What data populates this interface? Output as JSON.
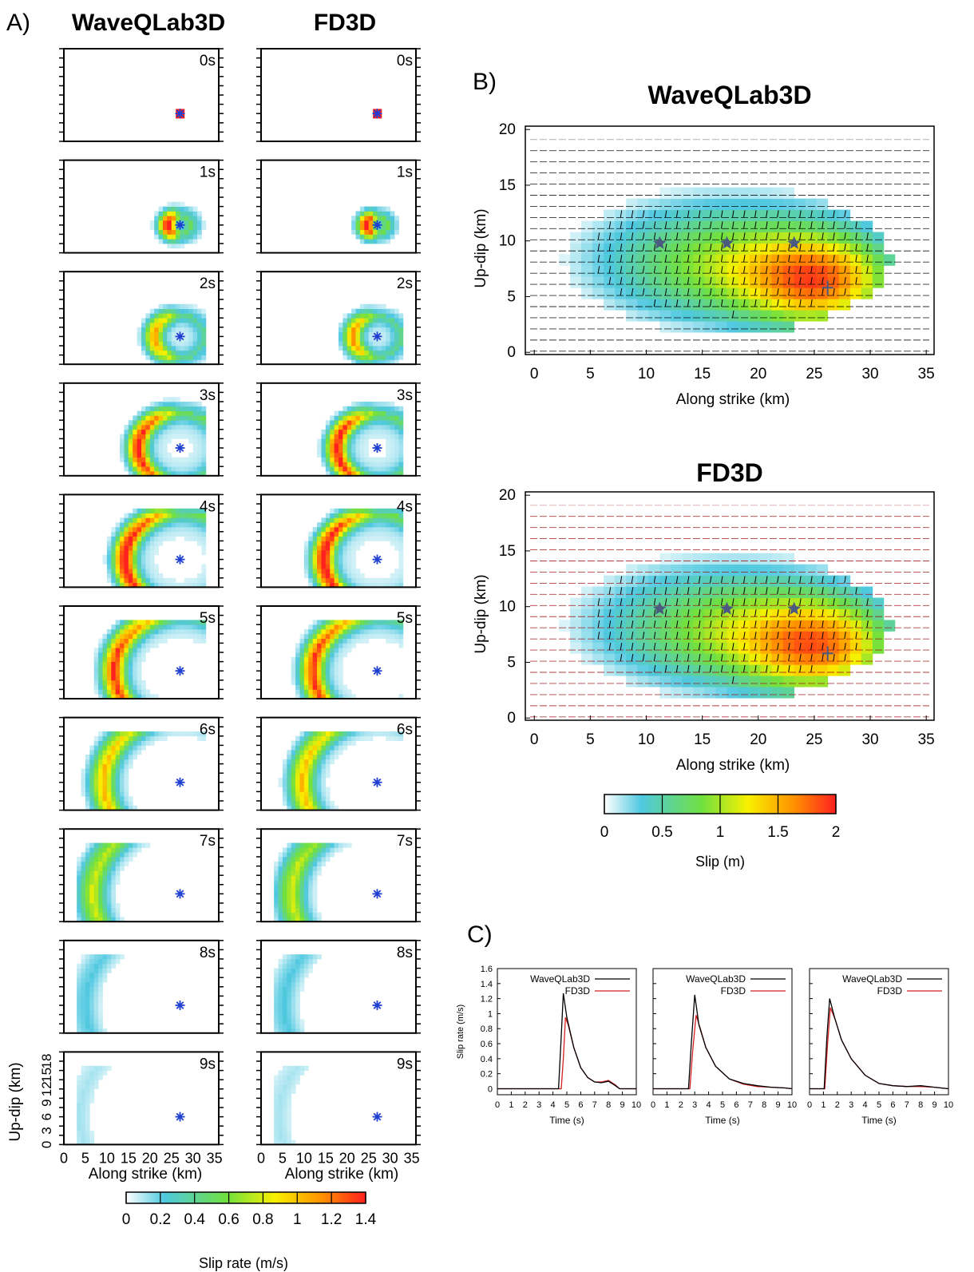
{
  "panels": {
    "a": "A)",
    "b": "B)",
    "c": "C)"
  },
  "panel_a": {
    "columns": [
      "WaveQLab3D",
      "FD3D"
    ],
    "times": [
      "0s",
      "1s",
      "2s",
      "3s",
      "4s",
      "5s",
      "6s",
      "7s",
      "8s",
      "9s"
    ],
    "xlabel": "Along strike (km)",
    "ylabel": "Up-dip (km)",
    "xticks": [
      "0",
      "5",
      "10",
      "15",
      "20",
      "25",
      "30",
      "35"
    ],
    "yticks": [
      "0",
      "3",
      "6",
      "9",
      "12",
      "15",
      "18"
    ],
    "colorbar_label": "Slip rate (m/s)",
    "colorbar_ticks": [
      "0",
      "0.2",
      "0.4",
      "0.6",
      "0.8",
      "1",
      "1.2",
      "1.4"
    ]
  },
  "panel_b": {
    "titles": [
      "WaveQLab3D",
      "FD3D"
    ],
    "xlabel": "Along strike (km)",
    "ylabel": "Up-dip (km)",
    "xticks": [
      "0",
      "5",
      "10",
      "15",
      "20",
      "25",
      "30",
      "35"
    ],
    "yticks": [
      "0",
      "5",
      "10",
      "15",
      "20"
    ],
    "colorbar_label": "Slip (m)",
    "colorbar_ticks": [
      "0",
      "0.5",
      "1",
      "1.5",
      "2"
    ]
  },
  "panel_c": {
    "xlabel": "Time (s)",
    "ylabel": "Slip rate (m/s)",
    "xticks": [
      "0",
      "1",
      "2",
      "3",
      "4",
      "5",
      "6",
      "7",
      "8",
      "9",
      "10"
    ],
    "yticks": [
      "0",
      "0.2",
      "0.4",
      "0.6",
      "0.8",
      "1",
      "1.2",
      "1.4",
      "1.6"
    ],
    "legend": [
      "WaveQLab3D",
      "FD3D"
    ]
  },
  "colors": {
    "wave": "#000000",
    "fd3d": "#d42020",
    "hypocenter": "#1f3fd0",
    "star": "#4a5a80",
    "colormap": [
      "#ffffff",
      "#4fc8e0",
      "#70e040",
      "#f8f000",
      "#ff9000",
      "#ff2020"
    ]
  },
  "chart_data": [
    {
      "type": "heatmap",
      "panel": "A",
      "description_series": "slip-rate snapshots",
      "xlim": [
        0,
        36
      ],
      "ylim": [
        0,
        20
      ],
      "hypocenter": [
        27,
        6
      ],
      "slip_rate_range": [
        0,
        1.4
      ],
      "snapshots": [
        {
          "t": 0,
          "front_radius_km": 0.8,
          "peak": 1.4
        },
        {
          "t": 1,
          "front_radius_km": 2.5,
          "peak": 1.35
        },
        {
          "t": 2,
          "front_radius_km": 5,
          "peak": 1.0
        },
        {
          "t": 3,
          "front_radius_km": 8,
          "peak": 1.3
        },
        {
          "t": 4,
          "front_radius_km": 10.5,
          "peak": 1.35
        },
        {
          "t": 5,
          "front_radius_km": 12.5,
          "peak": 1.2
        },
        {
          "t": 6,
          "front_radius_km": 14.5,
          "peak": 0.9
        },
        {
          "t": 7,
          "front_radius_km": 16.5,
          "peak": 0.7
        },
        {
          "t": 8,
          "front_radius_km": 18,
          "peak": 0.2
        },
        {
          "t": 9,
          "front_radius_km": 19,
          "peak": 0.1
        }
      ]
    },
    {
      "type": "heatmap",
      "panel": "B",
      "xlim": [
        0,
        36
      ],
      "ylim": [
        0,
        20
      ],
      "slip_range": [
        0,
        2
      ],
      "stations": [
        [
          12,
          10
        ],
        [
          18,
          10
        ],
        [
          24,
          10
        ]
      ],
      "hypocenter": [
        27,
        6
      ],
      "peak_slip": 1.9
    },
    {
      "type": "line",
      "panel": "C",
      "xlim": [
        0,
        10
      ],
      "ylim": [
        0,
        1.6
      ],
      "plots": [
        {
          "series": [
            {
              "name": "WaveQLab3D",
              "x": [
                0,
                4.4,
                4.6,
                4.75,
                5.0,
                5.5,
                6.0,
                6.5,
                7.0,
                7.5,
                8.0,
                8.5,
                8.8,
                10
              ],
              "y": [
                0,
                0,
                0.7,
                1.27,
                0.95,
                0.55,
                0.28,
                0.15,
                0.09,
                0.08,
                0.1,
                0.04,
                0,
                0
              ]
            },
            {
              "name": "FD3D",
              "x": [
                0,
                4.6,
                4.75,
                4.9,
                5.1,
                5.5,
                6.0,
                6.5,
                7.0,
                7.5,
                8.0,
                8.5,
                8.8,
                10
              ],
              "y": [
                0,
                0,
                0.4,
                0.95,
                0.85,
                0.55,
                0.28,
                0.15,
                0.09,
                0.09,
                0.11,
                0.05,
                0,
                0
              ]
            }
          ]
        },
        {
          "series": [
            {
              "name": "WaveQLab3D",
              "x": [
                0,
                2.55,
                2.75,
                3.0,
                3.3,
                3.8,
                4.5,
                5.5,
                6.5,
                7.5,
                8.5,
                9.5,
                10
              ],
              "y": [
                0,
                0,
                0.6,
                1.25,
                0.85,
                0.55,
                0.3,
                0.13,
                0.07,
                0.04,
                0.02,
                0.01,
                0
              ]
            },
            {
              "name": "FD3D",
              "x": [
                0,
                2.65,
                2.85,
                3.1,
                3.4,
                3.8,
                4.5,
                5.5,
                6.5,
                7.5,
                8.5,
                9.5,
                10
              ],
              "y": [
                0,
                0,
                0.5,
                0.98,
                0.8,
                0.55,
                0.3,
                0.13,
                0.06,
                0.03,
                0.02,
                0.01,
                0
              ]
            }
          ]
        },
        {
          "series": [
            {
              "name": "WaveQLab3D",
              "x": [
                0,
                1.05,
                1.25,
                1.45,
                1.8,
                2.3,
                3.0,
                4.0,
                5.0,
                6.0,
                7.0,
                8.0,
                9.0,
                10
              ],
              "y": [
                0,
                0,
                0.7,
                1.2,
                0.95,
                0.65,
                0.4,
                0.18,
                0.07,
                0.04,
                0.03,
                0.04,
                0.02,
                0
              ]
            },
            {
              "name": "FD3D",
              "x": [
                0,
                1.1,
                1.3,
                1.5,
                1.85,
                2.3,
                3.0,
                4.0,
                5.0,
                6.0,
                7.0,
                8.0,
                9.0,
                10
              ],
              "y": [
                0,
                0,
                0.6,
                1.08,
                0.92,
                0.65,
                0.4,
                0.18,
                0.07,
                0.04,
                0.03,
                0.03,
                0.02,
                0
              ]
            }
          ]
        }
      ]
    }
  ]
}
